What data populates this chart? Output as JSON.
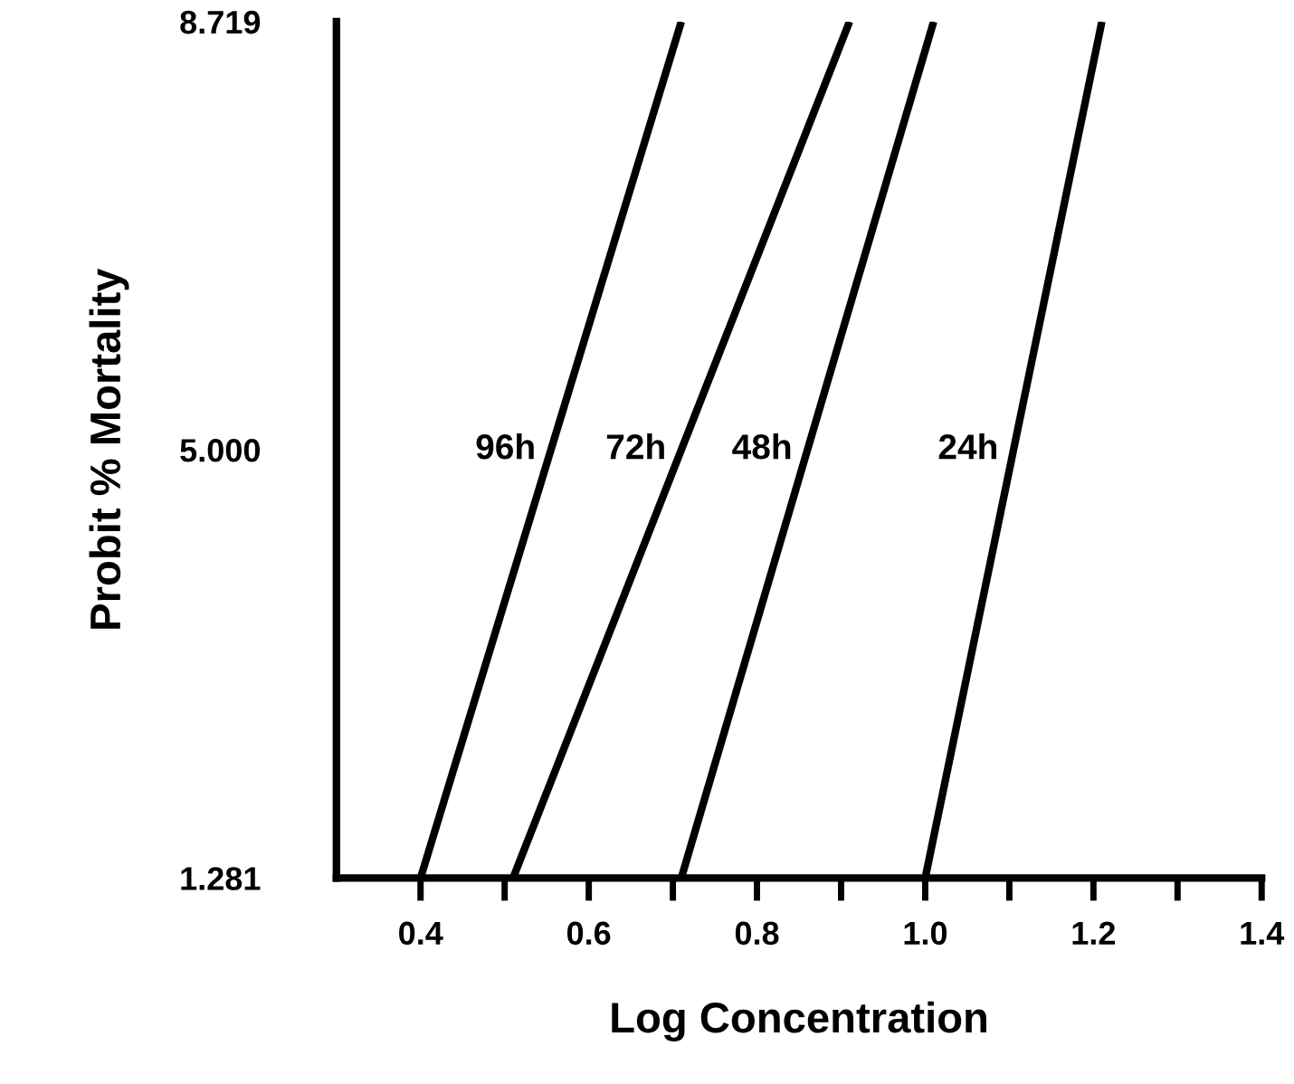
{
  "chart_data": {
    "type": "line",
    "xlabel": "Log Concentration",
    "ylabel": "Probit % Mortality",
    "xlim": [
      0.3,
      1.4
    ],
    "ylim": [
      1.281,
      8.719
    ],
    "xticks": [
      0.4,
      {
        "value": 0.5,
        "label": null
      },
      0.6,
      {
        "value": 0.7,
        "label": null
      },
      0.8,
      {
        "value": 0.9,
        "label": null
      },
      {
        "value": 1.0,
        "label": "1.0"
      },
      {
        "value": 1.1,
        "label": null
      },
      1.2,
      {
        "value": 1.3,
        "label": null
      },
      1.4
    ],
    "yticks": [
      {
        "value": 1.281,
        "label": "1.281"
      },
      {
        "value": 5.0,
        "label": "5.000"
      },
      {
        "value": 8.719,
        "label": "8.719"
      }
    ],
    "grid": false,
    "legend": false,
    "marker": "none",
    "line_style": "solid",
    "series": [
      {
        "name": "96h",
        "color": "#000000",
        "x": [
          0.4,
          0.71
        ],
        "values": [
          1.281,
          8.719
        ]
      },
      {
        "name": "72h",
        "color": "#000000",
        "x": [
          0.51,
          0.91
        ],
        "values": [
          1.281,
          8.719
        ]
      },
      {
        "name": "48h",
        "color": "#000000",
        "x": [
          0.71,
          1.01
        ],
        "values": [
          1.281,
          8.719
        ]
      },
      {
        "name": "24h",
        "color": "#000000",
        "x": [
          1.0,
          1.21
        ],
        "values": [
          1.281,
          8.719
        ]
      }
    ]
  }
}
